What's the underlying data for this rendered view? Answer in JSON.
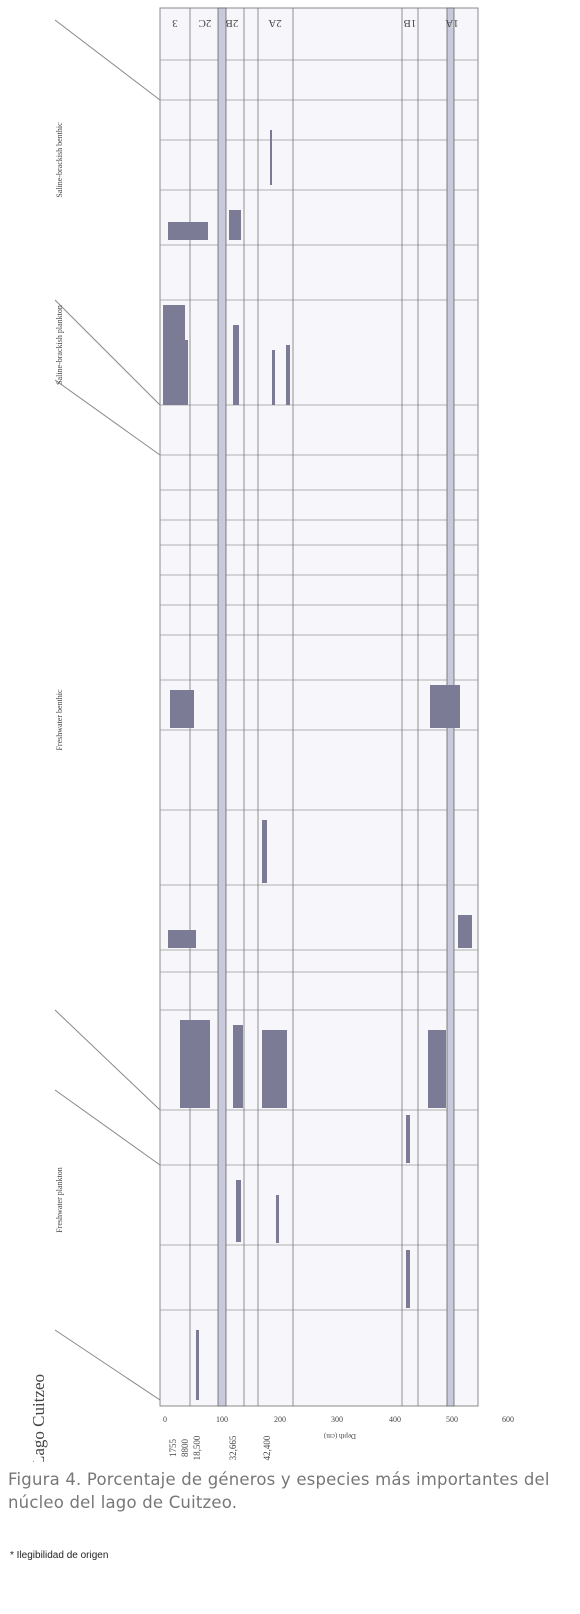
{
  "figure": {
    "title": "Lago Cuitzeo",
    "depth_axis": {
      "label": "Depth (cm)",
      "ticks": [
        "0",
        "100",
        "200",
        "300",
        "400",
        "500",
        "600"
      ]
    },
    "ages": [
      "1755",
      "8800",
      "18,500",
      "32,665",
      "42,400"
    ],
    "zones": [
      "3",
      "2C",
      "2B",
      "2A",
      "1B",
      "1A"
    ],
    "groups": [
      "Saline-brackish benthic",
      "Saline-brackish plankton",
      "Freshwater benthic",
      "Freshwater plankton"
    ]
  },
  "caption": "Figura 4. Porcentaje de géneros y especies más importantes del núcleo del lago de Cuitzeo.",
  "note": "* Ilegibilidad de origen"
}
